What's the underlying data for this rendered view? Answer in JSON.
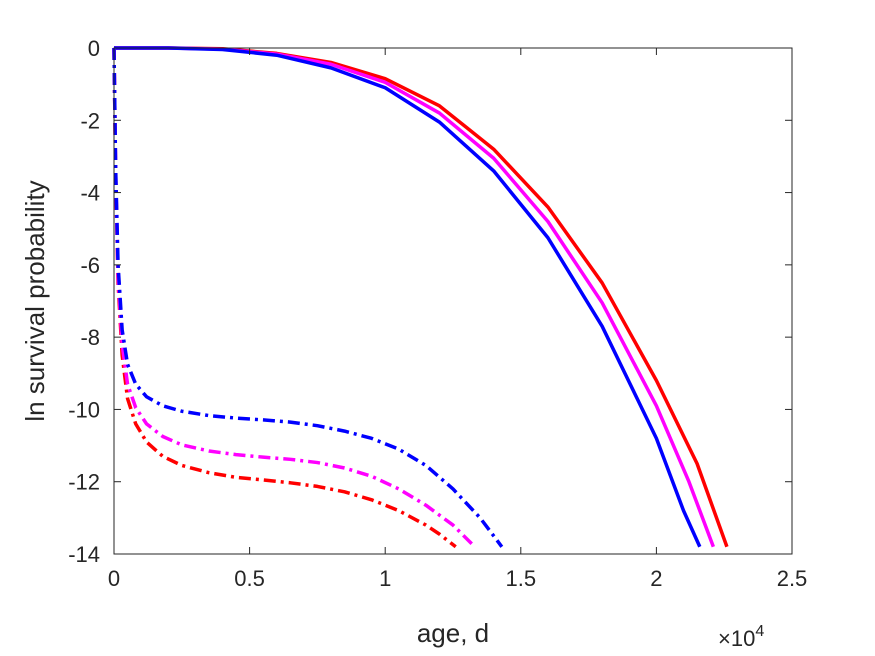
{
  "chart_data": {
    "type": "line",
    "xlabel": "age, d",
    "ylabel": "ln survival probability",
    "x_multiplier": {
      "base": "×10",
      "exponent": "4"
    },
    "xlim": [
      0,
      25000
    ],
    "ylim": [
      -14,
      0
    ],
    "xticks": [
      {
        "value": 0,
        "label": "0"
      },
      {
        "value": 5000,
        "label": "0.5"
      },
      {
        "value": 10000,
        "label": "1"
      },
      {
        "value": 15000,
        "label": "1.5"
      },
      {
        "value": 20000,
        "label": "2"
      },
      {
        "value": 25000,
        "label": "2.5"
      }
    ],
    "yticks": [
      {
        "value": 0,
        "label": "0"
      },
      {
        "value": -2,
        "label": "-2"
      },
      {
        "value": -4,
        "label": "-4"
      },
      {
        "value": -6,
        "label": "-6"
      },
      {
        "value": -8,
        "label": "-8"
      },
      {
        "value": -10,
        "label": "-10"
      },
      {
        "value": -12,
        "label": "-12"
      },
      {
        "value": -14,
        "label": "-14"
      }
    ],
    "grid": false,
    "legend": "none",
    "series": [
      {
        "color": "#ff0000",
        "style": "solid",
        "x": [
          0,
          2000,
          4000,
          6000,
          8000,
          10000,
          12000,
          14000,
          16000,
          18000,
          20000,
          21500,
          22600
        ],
        "y": [
          0,
          0,
          -0.02,
          -0.15,
          -0.4,
          -0.85,
          -1.6,
          -2.8,
          -4.4,
          -6.5,
          -9.2,
          -11.5,
          -13.8
        ]
      },
      {
        "color": "#ff00ff",
        "style": "solid",
        "x": [
          0,
          2000,
          4000,
          6000,
          8000,
          10000,
          12000,
          14000,
          16000,
          18000,
          20000,
          21200,
          22100
        ],
        "y": [
          0,
          0,
          -0.03,
          -0.17,
          -0.45,
          -0.95,
          -1.8,
          -3.05,
          -4.8,
          -7.05,
          -9.9,
          -12.0,
          -13.8
        ]
      },
      {
        "color": "#0000ff",
        "style": "solid",
        "x": [
          0,
          2000,
          4000,
          6000,
          8000,
          10000,
          12000,
          14000,
          16000,
          18000,
          20000,
          21000,
          21600
        ],
        "y": [
          0,
          0,
          -0.04,
          -0.2,
          -0.55,
          -1.1,
          -2.05,
          -3.4,
          -5.25,
          -7.7,
          -10.8,
          -12.8,
          -13.8
        ]
      },
      {
        "color": "#ff0000",
        "style": "dashdot",
        "x": [
          0,
          60,
          150,
          300,
          500,
          800,
          1200,
          1800,
          2500,
          3500,
          4500,
          5500,
          6500,
          7500,
          8500,
          9500,
          10500,
          11500,
          12000,
          12600
        ],
        "y": [
          0,
          -3.5,
          -6.5,
          -8.5,
          -9.7,
          -10.4,
          -10.9,
          -11.3,
          -11.55,
          -11.75,
          -11.88,
          -11.95,
          -12.03,
          -12.13,
          -12.28,
          -12.5,
          -12.8,
          -13.2,
          -13.45,
          -13.8
        ]
      },
      {
        "color": "#ff00ff",
        "style": "dashdot",
        "x": [
          0,
          60,
          150,
          300,
          500,
          800,
          1200,
          1800,
          2500,
          3500,
          4500,
          5500,
          6500,
          7500,
          8500,
          9500,
          10500,
          11500,
          12500,
          13300
        ],
        "y": [
          0,
          -3.4,
          -6.3,
          -8.2,
          -9.3,
          -9.95,
          -10.4,
          -10.75,
          -10.98,
          -11.15,
          -11.25,
          -11.32,
          -11.38,
          -11.47,
          -11.62,
          -11.85,
          -12.2,
          -12.65,
          -13.2,
          -13.8
        ]
      },
      {
        "color": "#0000ff",
        "style": "dashdot",
        "x": [
          0,
          60,
          150,
          300,
          500,
          800,
          1200,
          1800,
          2500,
          3500,
          4500,
          5500,
          6500,
          7500,
          8500,
          9500,
          10500,
          11500,
          12500,
          13500,
          14300
        ],
        "y": [
          0,
          -3.3,
          -6.0,
          -7.8,
          -8.75,
          -9.3,
          -9.65,
          -9.9,
          -10.05,
          -10.17,
          -10.24,
          -10.29,
          -10.35,
          -10.45,
          -10.6,
          -10.8,
          -11.1,
          -11.55,
          -12.2,
          -13.0,
          -13.8
        ]
      }
    ]
  }
}
